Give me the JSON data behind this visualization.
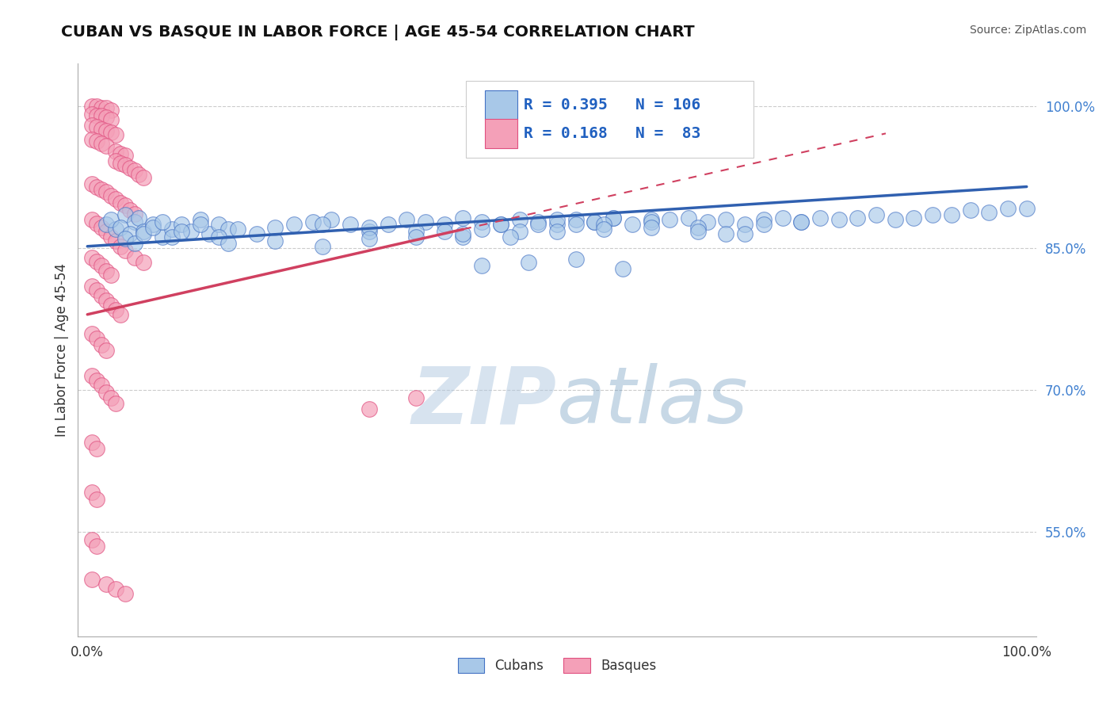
{
  "title": "CUBAN VS BASQUE IN LABOR FORCE | AGE 45-54 CORRELATION CHART",
  "source_text": "Source: ZipAtlas.com",
  "ylabel": "In Labor Force | Age 45-54",
  "watermark_zip": "ZIP",
  "watermark_atlas": "atlas",
  "xlim": [
    -0.01,
    1.01
  ],
  "ylim": [
    0.44,
    1.045
  ],
  "yticks": [
    0.55,
    0.7,
    0.85,
    1.0
  ],
  "ytick_labels": [
    "55.0%",
    "70.0%",
    "85.0%",
    "100.0%"
  ],
  "xtick_labels": [
    "0.0%",
    "100.0%"
  ],
  "legend_blue_r": "0.395",
  "legend_blue_n": "106",
  "legend_pink_r": "0.168",
  "legend_pink_n": " 83",
  "legend_label_blue": "Cubans",
  "legend_label_pink": "Basques",
  "blue_fill": "#a8c8e8",
  "blue_edge": "#4472c4",
  "pink_fill": "#f4a0b8",
  "pink_edge": "#e05080",
  "blue_line_color": "#3060b0",
  "pink_line_color": "#d04060",
  "grid_color": "#cccccc",
  "title_color": "#111111",
  "source_color": "#555555",
  "ylabel_color": "#333333",
  "right_tick_color": "#4080d0",
  "legend_text_color": "#2060c0",
  "bottom_legend_color": "#333333",
  "blue_scatter_x": [
    0.02,
    0.03,
    0.025,
    0.04,
    0.035,
    0.05,
    0.045,
    0.055,
    0.06,
    0.07,
    0.08,
    0.09,
    0.1,
    0.11,
    0.12,
    0.13,
    0.14,
    0.15,
    0.04,
    0.05,
    0.06,
    0.07,
    0.08,
    0.09,
    0.1,
    0.12,
    0.14,
    0.16,
    0.18,
    0.2,
    0.22,
    0.24,
    0.26,
    0.28,
    0.3,
    0.32,
    0.34,
    0.36,
    0.38,
    0.4,
    0.42,
    0.44,
    0.46,
    0.48,
    0.5,
    0.52,
    0.54,
    0.56,
    0.58,
    0.6,
    0.38,
    0.4,
    0.42,
    0.44,
    0.46,
    0.48,
    0.5,
    0.52,
    0.54,
    0.56,
    0.62,
    0.64,
    0.66,
    0.68,
    0.7,
    0.72,
    0.74,
    0.76,
    0.78,
    0.8,
    0.82,
    0.84,
    0.86,
    0.88,
    0.9,
    0.92,
    0.94,
    0.96,
    0.98,
    1.0,
    0.25,
    0.3,
    0.35,
    0.55,
    0.6,
    0.65,
    0.7,
    0.42,
    0.47,
    0.52,
    0.57,
    0.15,
    0.2,
    0.25,
    0.3,
    0.35,
    0.4,
    0.45,
    0.5,
    0.55,
    0.6,
    0.65,
    0.68,
    0.72,
    0.76
  ],
  "blue_scatter_y": [
    0.875,
    0.87,
    0.88,
    0.885,
    0.872,
    0.878,
    0.865,
    0.882,
    0.868,
    0.875,
    0.862,
    0.87,
    0.875,
    0.868,
    0.88,
    0.865,
    0.875,
    0.87,
    0.86,
    0.855,
    0.865,
    0.872,
    0.878,
    0.862,
    0.868,
    0.875,
    0.862,
    0.87,
    0.865,
    0.872,
    0.875,
    0.878,
    0.88,
    0.875,
    0.868,
    0.875,
    0.88,
    0.878,
    0.875,
    0.882,
    0.878,
    0.875,
    0.88,
    0.878,
    0.875,
    0.88,
    0.878,
    0.882,
    0.875,
    0.88,
    0.868,
    0.862,
    0.87,
    0.875,
    0.868,
    0.875,
    0.88,
    0.875,
    0.878,
    0.882,
    0.88,
    0.882,
    0.878,
    0.88,
    0.875,
    0.88,
    0.882,
    0.878,
    0.882,
    0.88,
    0.882,
    0.885,
    0.88,
    0.882,
    0.885,
    0.885,
    0.89,
    0.888,
    0.892,
    0.892,
    0.875,
    0.872,
    0.868,
    0.875,
    0.878,
    0.872,
    0.865,
    0.832,
    0.835,
    0.838,
    0.828,
    0.855,
    0.858,
    0.852,
    0.86,
    0.862,
    0.865,
    0.862,
    0.868,
    0.87,
    0.872,
    0.868,
    0.865,
    0.875,
    0.878
  ],
  "pink_scatter_x": [
    0.005,
    0.01,
    0.015,
    0.02,
    0.025,
    0.005,
    0.01,
    0.015,
    0.02,
    0.025,
    0.005,
    0.01,
    0.015,
    0.02,
    0.025,
    0.03,
    0.005,
    0.01,
    0.015,
    0.02,
    0.03,
    0.035,
    0.04,
    0.03,
    0.035,
    0.04,
    0.045,
    0.05,
    0.055,
    0.06,
    0.005,
    0.01,
    0.015,
    0.02,
    0.025,
    0.03,
    0.035,
    0.04,
    0.045,
    0.05,
    0.005,
    0.01,
    0.015,
    0.02,
    0.025,
    0.03,
    0.035,
    0.04,
    0.005,
    0.01,
    0.015,
    0.02,
    0.025,
    0.005,
    0.01,
    0.015,
    0.02,
    0.025,
    0.03,
    0.035,
    0.005,
    0.01,
    0.015,
    0.02,
    0.005,
    0.01,
    0.015,
    0.02,
    0.025,
    0.03,
    0.005,
    0.01,
    0.005,
    0.01,
    0.005,
    0.01,
    0.005,
    0.02,
    0.03,
    0.04,
    0.3,
    0.35,
    0.05,
    0.06
  ],
  "pink_scatter_y": [
    1.0,
    1.0,
    0.998,
    0.998,
    0.996,
    0.992,
    0.99,
    0.99,
    0.988,
    0.986,
    0.98,
    0.978,
    0.976,
    0.974,
    0.972,
    0.97,
    0.965,
    0.963,
    0.961,
    0.958,
    0.952,
    0.95,
    0.948,
    0.942,
    0.94,
    0.938,
    0.935,
    0.932,
    0.928,
    0.925,
    0.918,
    0.915,
    0.912,
    0.91,
    0.905,
    0.902,
    0.898,
    0.895,
    0.89,
    0.886,
    0.88,
    0.876,
    0.872,
    0.868,
    0.862,
    0.858,
    0.852,
    0.848,
    0.84,
    0.836,
    0.832,
    0.826,
    0.822,
    0.81,
    0.806,
    0.8,
    0.795,
    0.79,
    0.785,
    0.78,
    0.76,
    0.755,
    0.748,
    0.742,
    0.715,
    0.71,
    0.705,
    0.698,
    0.692,
    0.686,
    0.645,
    0.638,
    0.592,
    0.585,
    0.542,
    0.535,
    0.5,
    0.495,
    0.49,
    0.485,
    0.68,
    0.692,
    0.84,
    0.835
  ],
  "pink_trend_x0": 0.0,
  "pink_trend_x_solid_end": 0.4,
  "pink_trend_x_dash_end": 0.85,
  "pink_trend_y0": 0.78,
  "pink_trend_y_solid_end": 0.87,
  "pink_trend_y_dash_end": 0.965,
  "blue_trend_x0": 0.0,
  "blue_trend_x1": 1.0,
  "blue_trend_y0": 0.852,
  "blue_trend_y1": 0.915
}
